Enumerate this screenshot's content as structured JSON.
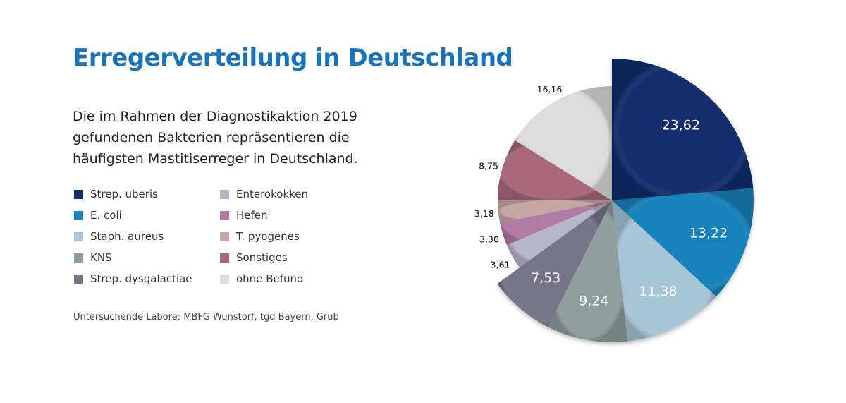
{
  "header": {
    "title": "Erregerverteilung in Deutschland",
    "intro_lines": [
      "Die im Rahmen der Diagnostikaktion 2019",
      "gefundenen Bakterien repräsentieren die",
      "häufigsten Mastitiserreger in Deutschland."
    ]
  },
  "footer": {
    "source": "Untersuchende Labore: MBFG Wunstorf, tgd Bayern, Grub"
  },
  "chart_data": {
    "type": "pie",
    "title": "Erregerverteilung in Deutschland",
    "start": "12 o'clock, clockwise",
    "legend_position": "left",
    "unit": "%",
    "slices": [
      {
        "label": "Strep. uberis",
        "value": 23.62,
        "display": "23,62",
        "color": "#142f6e",
        "emphasized": true,
        "label_position": "inside"
      },
      {
        "label": "E. coli",
        "value": 13.22,
        "display": "13,22",
        "color": "#1883bd",
        "emphasized": true,
        "label_position": "inside"
      },
      {
        "label": "Staph. aureus",
        "value": 11.38,
        "display": "11,38",
        "color": "#a7c5d7",
        "emphasized": true,
        "label_position": "inside"
      },
      {
        "label": "KNS",
        "value": 9.24,
        "display": "9,24",
        "color": "#8d9e9c",
        "emphasized": true,
        "label_position": "inside"
      },
      {
        "label": "Strep. dysgalactiae",
        "value": 7.53,
        "display": "7,53",
        "color": "#767587",
        "emphasized": true,
        "label_position": "inside"
      },
      {
        "label": "Enterokokken",
        "value": 3.61,
        "display": "3,61",
        "color": "#b8b7cb",
        "emphasized": false,
        "label_position": "outside"
      },
      {
        "label": "Hefen",
        "value": 3.3,
        "display": "3,30",
        "color": "#b07ba4",
        "emphasized": false,
        "label_position": "outside"
      },
      {
        "label": "T. pyogenes",
        "value": 3.18,
        "display": "3,18",
        "color": "#c6a8a2",
        "emphasized": false,
        "label_position": "outside"
      },
      {
        "label": "Sonstiges",
        "value": 8.75,
        "display": "8,75",
        "color": "#a8687a",
        "emphasized": false,
        "label_position": "outside"
      },
      {
        "label": "ohne Befund",
        "value": 16.16,
        "display": "16,16",
        "color": "#dcdcdc",
        "emphasized": false,
        "label_position": "outside"
      }
    ]
  }
}
